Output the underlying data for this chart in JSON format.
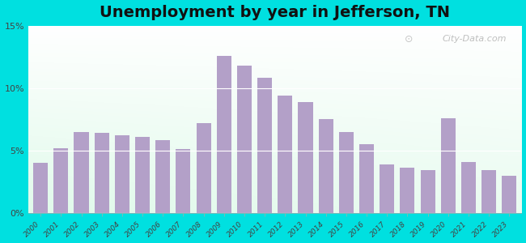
{
  "title": "Unemployment by year in Jefferson, TN",
  "years": [
    2000,
    2001,
    2002,
    2003,
    2004,
    2005,
    2006,
    2007,
    2008,
    2009,
    2010,
    2011,
    2012,
    2013,
    2014,
    2015,
    2016,
    2017,
    2018,
    2019,
    2020,
    2021,
    2022,
    2023
  ],
  "values": [
    4.0,
    5.2,
    6.5,
    6.4,
    6.2,
    6.1,
    5.8,
    5.1,
    7.2,
    12.6,
    11.8,
    10.8,
    9.4,
    8.9,
    7.5,
    6.5,
    5.5,
    3.9,
    3.6,
    3.4,
    7.6,
    4.1,
    3.4,
    3.0
  ],
  "bar_color": "#b3a0c8",
  "outer_bg": "#00e0e0",
  "yticks": [
    0,
    5,
    10,
    15
  ],
  "ytick_labels": [
    "0%",
    "5%",
    "10%",
    "15%"
  ],
  "ylim": [
    0,
    15
  ],
  "title_fontsize": 14,
  "watermark": "City-Data.com"
}
